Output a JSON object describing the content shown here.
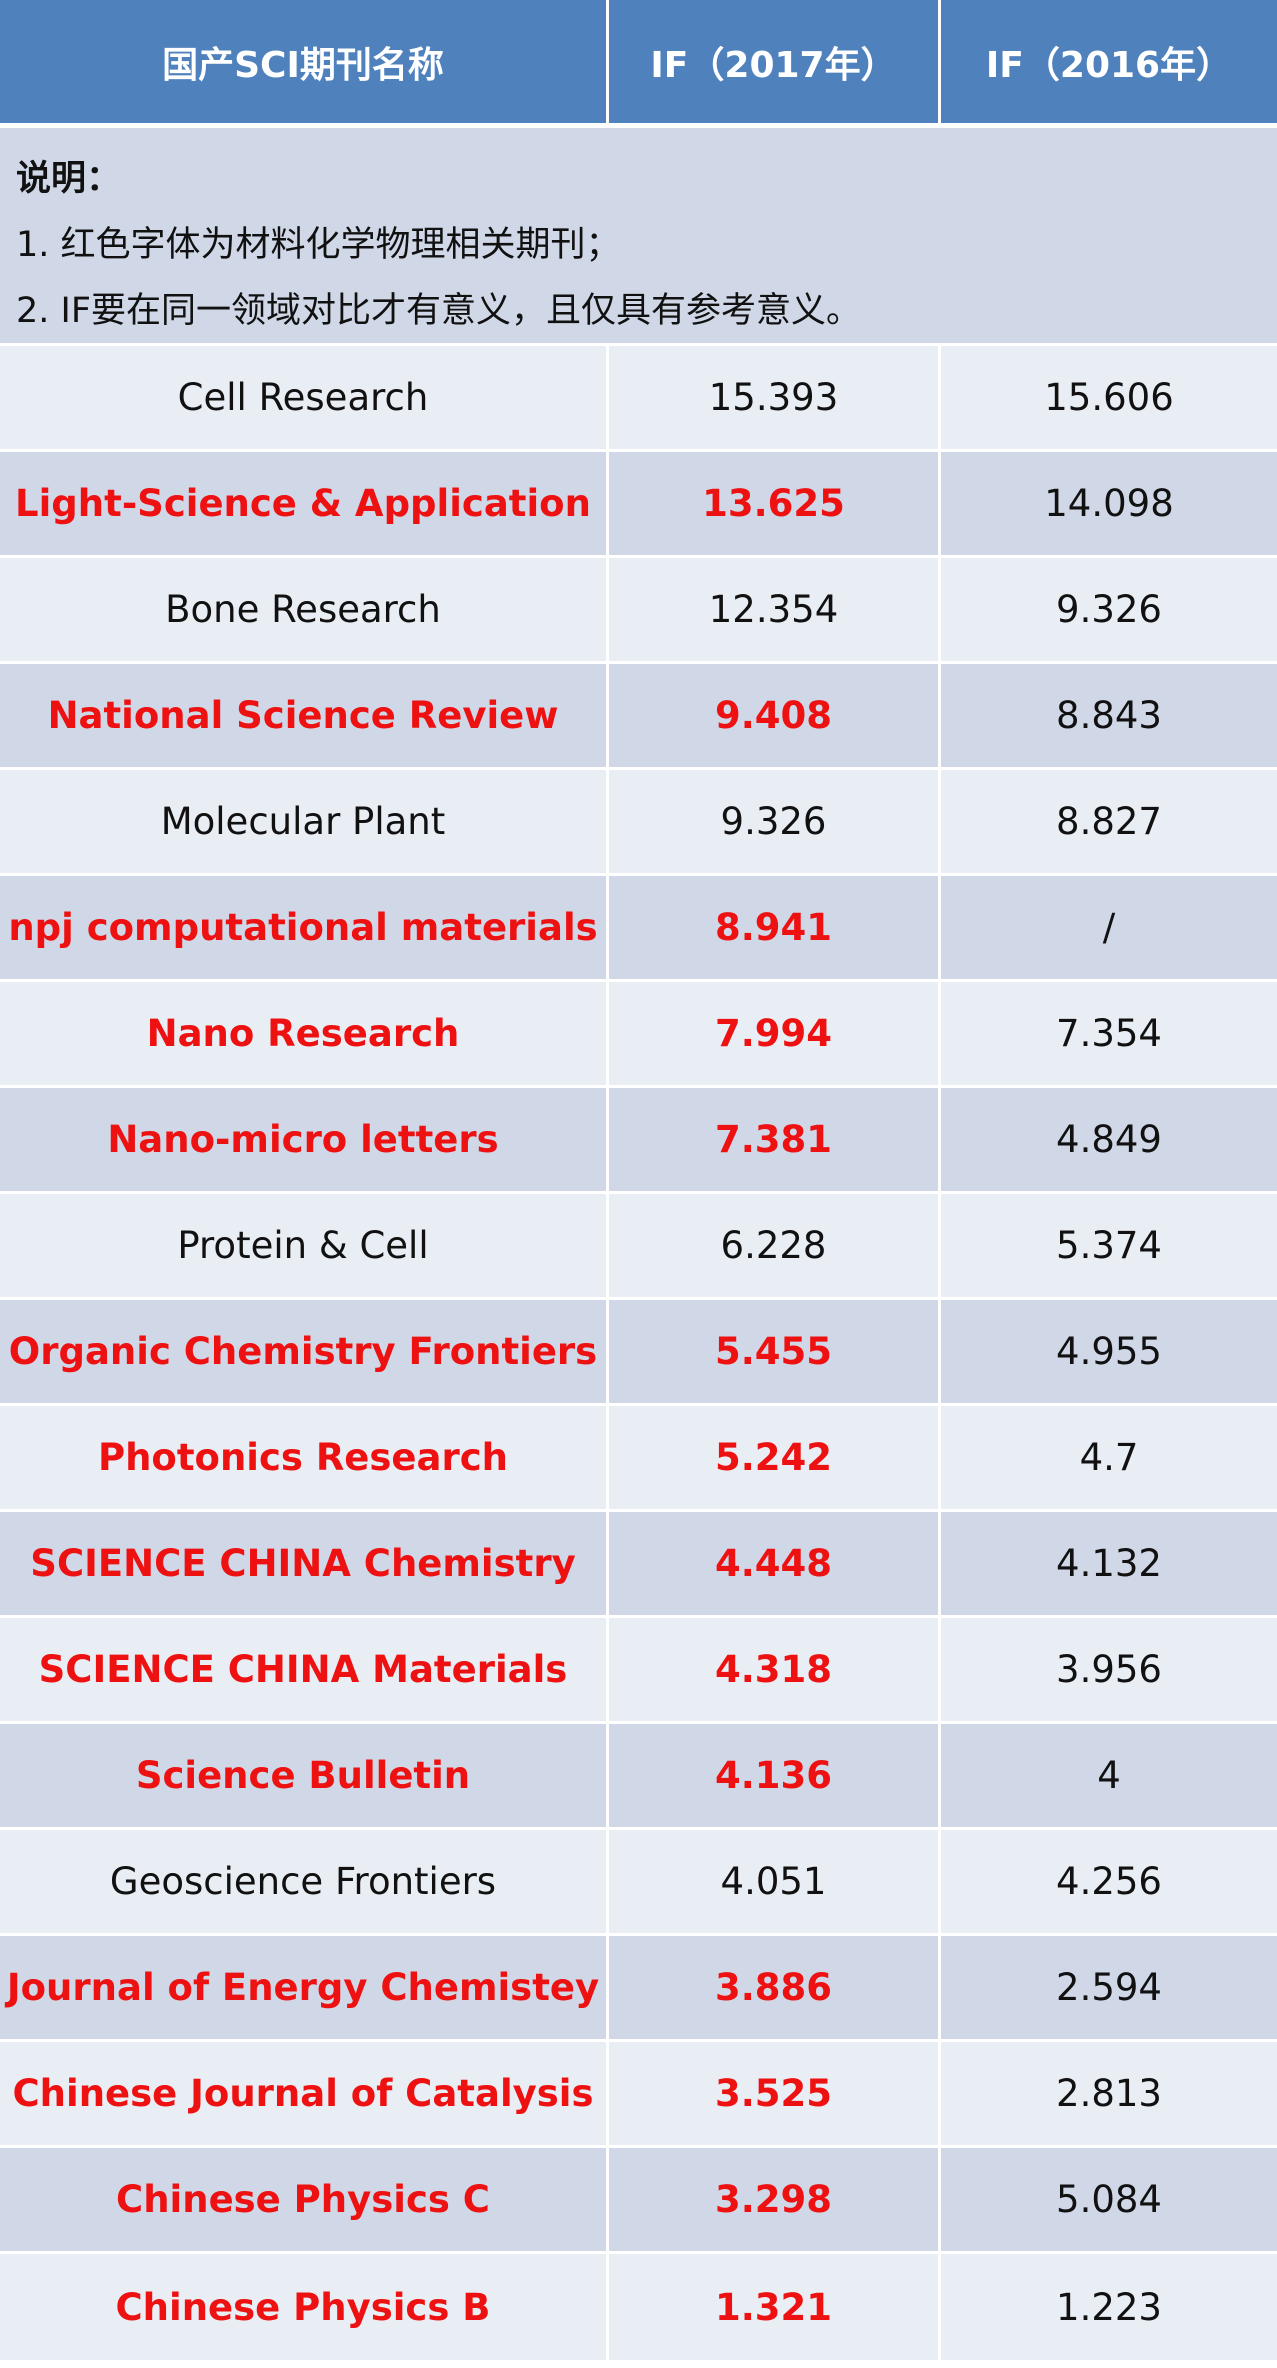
{
  "header": {
    "col_name": "国产SCI期刊名称",
    "col_if2017": "IF（2017年）",
    "col_if2016": "IF（2016年）"
  },
  "note": {
    "title": "说明：",
    "line1": "1. 红色字体为材料化学物理相关期刊；",
    "line2": "2. IF要在同一领域对比才有意义，且仅具有参考意义。"
  },
  "colors": {
    "header_bg": "#4f81bd",
    "row_light": "#e9edf4",
    "row_dark": "#d0d8e8",
    "highlight_text": "#ee1111"
  },
  "rows": [
    {
      "name": "Cell Research",
      "if2017": "15.393",
      "if2016": "15.606",
      "highlight": false
    },
    {
      "name": "Light-Science & Application",
      "if2017": "13.625",
      "if2016": "14.098",
      "highlight": true
    },
    {
      "name": "Bone Research",
      "if2017": "12.354",
      "if2016": "9.326",
      "highlight": false
    },
    {
      "name": "National Science Review",
      "if2017": "9.408",
      "if2016": "8.843",
      "highlight": true
    },
    {
      "name": "Molecular Plant",
      "if2017": "9.326",
      "if2016": "8.827",
      "highlight": false
    },
    {
      "name": "npj computational materials",
      "if2017": "8.941",
      "if2016": "/",
      "highlight": true
    },
    {
      "name": "Nano Research",
      "if2017": "7.994",
      "if2016": "7.354",
      "highlight": true
    },
    {
      "name": "Nano-micro letters",
      "if2017": "7.381",
      "if2016": "4.849",
      "highlight": true
    },
    {
      "name": "Protein & Cell",
      "if2017": "6.228",
      "if2016": "5.374",
      "highlight": false
    },
    {
      "name": "Organic Chemistry Frontiers",
      "if2017": "5.455",
      "if2016": "4.955",
      "highlight": true
    },
    {
      "name": "Photonics Research",
      "if2017": "5.242",
      "if2016": "4.7",
      "highlight": true
    },
    {
      "name": "SCIENCE CHINA Chemistry",
      "if2017": "4.448",
      "if2016": "4.132",
      "highlight": true
    },
    {
      "name": "SCIENCE CHINA Materials",
      "if2017": "4.318",
      "if2016": "3.956",
      "highlight": true
    },
    {
      "name": "Science Bulletin",
      "if2017": "4.136",
      "if2016": "4",
      "highlight": true
    },
    {
      "name": "Geoscience Frontiers",
      "if2017": "4.051",
      "if2016": "4.256",
      "highlight": false
    },
    {
      "name": "Journal of Energy Chemistey",
      "if2017": "3.886",
      "if2016": "2.594",
      "highlight": true
    },
    {
      "name": "Chinese Journal of Catalysis",
      "if2017": "3.525",
      "if2016": "2.813",
      "highlight": true
    },
    {
      "name": "Chinese Physics C",
      "if2017": "3.298",
      "if2016": "5.084",
      "highlight": true
    },
    {
      "name": "Chinese Physics B",
      "if2017": "1.321",
      "if2016": "1.223",
      "highlight": true
    }
  ]
}
